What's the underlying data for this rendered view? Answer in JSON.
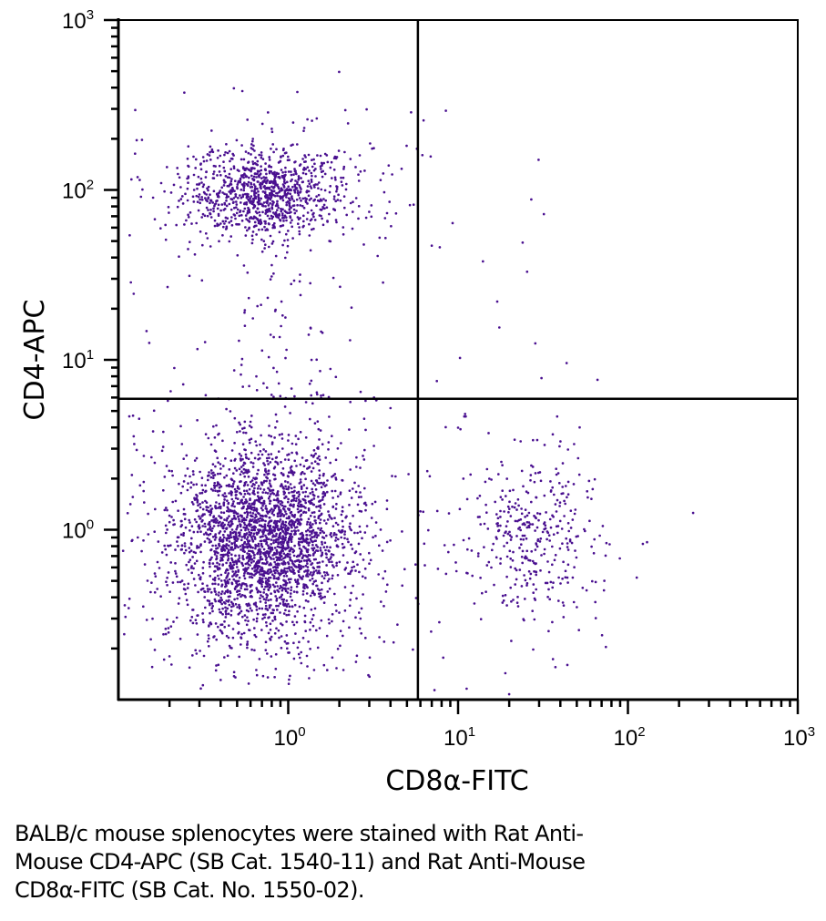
{
  "chart_data": {
    "type": "scatter",
    "title": "",
    "xlabel": "CD8α-FITC",
    "ylabel": "CD4-APC",
    "xscale": "log",
    "yscale": "log",
    "xlim": [
      0.1,
      1000
    ],
    "ylim": [
      0.1,
      1000
    ],
    "grid": false,
    "legend": "none",
    "x_ticks": [
      {
        "value": 1,
        "base": "10",
        "exp": "0"
      },
      {
        "value": 10,
        "base": "10",
        "exp": "1"
      },
      {
        "value": 100,
        "base": "10",
        "exp": "2"
      },
      {
        "value": 1000,
        "base": "10",
        "exp": "3"
      }
    ],
    "y_ticks": [
      {
        "value": 1,
        "base": "10",
        "exp": "0"
      },
      {
        "value": 10,
        "base": "10",
        "exp": "1"
      },
      {
        "value": 100,
        "base": "10",
        "exp": "2"
      },
      {
        "value": 1000,
        "base": "10",
        "exp": "3"
      }
    ],
    "quadrant_gate": {
      "x": 5.8,
      "y": 5.9
    },
    "point_color": "#4a1090",
    "populations": [
      {
        "name": "CD4+ CD8-",
        "quadrant": "upper-left",
        "center": [
          0.75,
          95
        ],
        "log_sd": [
          0.22,
          0.13
        ],
        "count": 1100
      },
      {
        "name": "CD4- CD8-",
        "quadrant": "lower-left",
        "center": [
          0.72,
          0.85
        ],
        "log_sd": [
          0.24,
          0.26
        ],
        "count": 2900
      },
      {
        "name": "CD4- CD8+",
        "quadrant": "lower-right",
        "center": [
          28,
          0.9
        ],
        "log_sd": [
          0.18,
          0.22
        ],
        "count": 380
      },
      {
        "name": "CD4 dim bridge",
        "quadrant": "upper-left",
        "center": [
          0.85,
          12
        ],
        "log_sd": [
          0.12,
          0.35
        ],
        "count": 60
      }
    ],
    "outliers": [
      [
        7.0,
        47
      ],
      [
        7.8,
        46
      ],
      [
        14,
        38
      ],
      [
        17,
        22
      ],
      [
        17.5,
        15.5
      ],
      [
        24,
        49
      ],
      [
        25.5,
        33
      ],
      [
        27,
        88
      ],
      [
        32,
        72
      ],
      [
        28.5,
        12.5
      ],
      [
        31,
        7.8
      ],
      [
        7.5,
        7.5
      ],
      [
        0.16,
        90
      ],
      [
        0.13,
        0.9
      ],
      [
        0.12,
        2.1
      ],
      [
        4.0,
        5.2
      ],
      [
        3.2,
        6.0
      ],
      [
        2.8,
        4.5
      ],
      [
        0.2,
        0.18
      ],
      [
        50,
        0.35
      ],
      [
        52,
        4.0
      ],
      [
        44,
        0.16
      ],
      [
        8.5,
        0.55
      ],
      [
        11,
        4.8
      ]
    ]
  },
  "caption": {
    "lines": [
      "BALB/c mouse splenocytes were stained with Rat Anti-",
      "Mouse CD4-APC (SB Cat. 1540-11) and Rat Anti-Mouse",
      "CD8α-FITC (SB Cat. No. 1550-02)."
    ]
  }
}
